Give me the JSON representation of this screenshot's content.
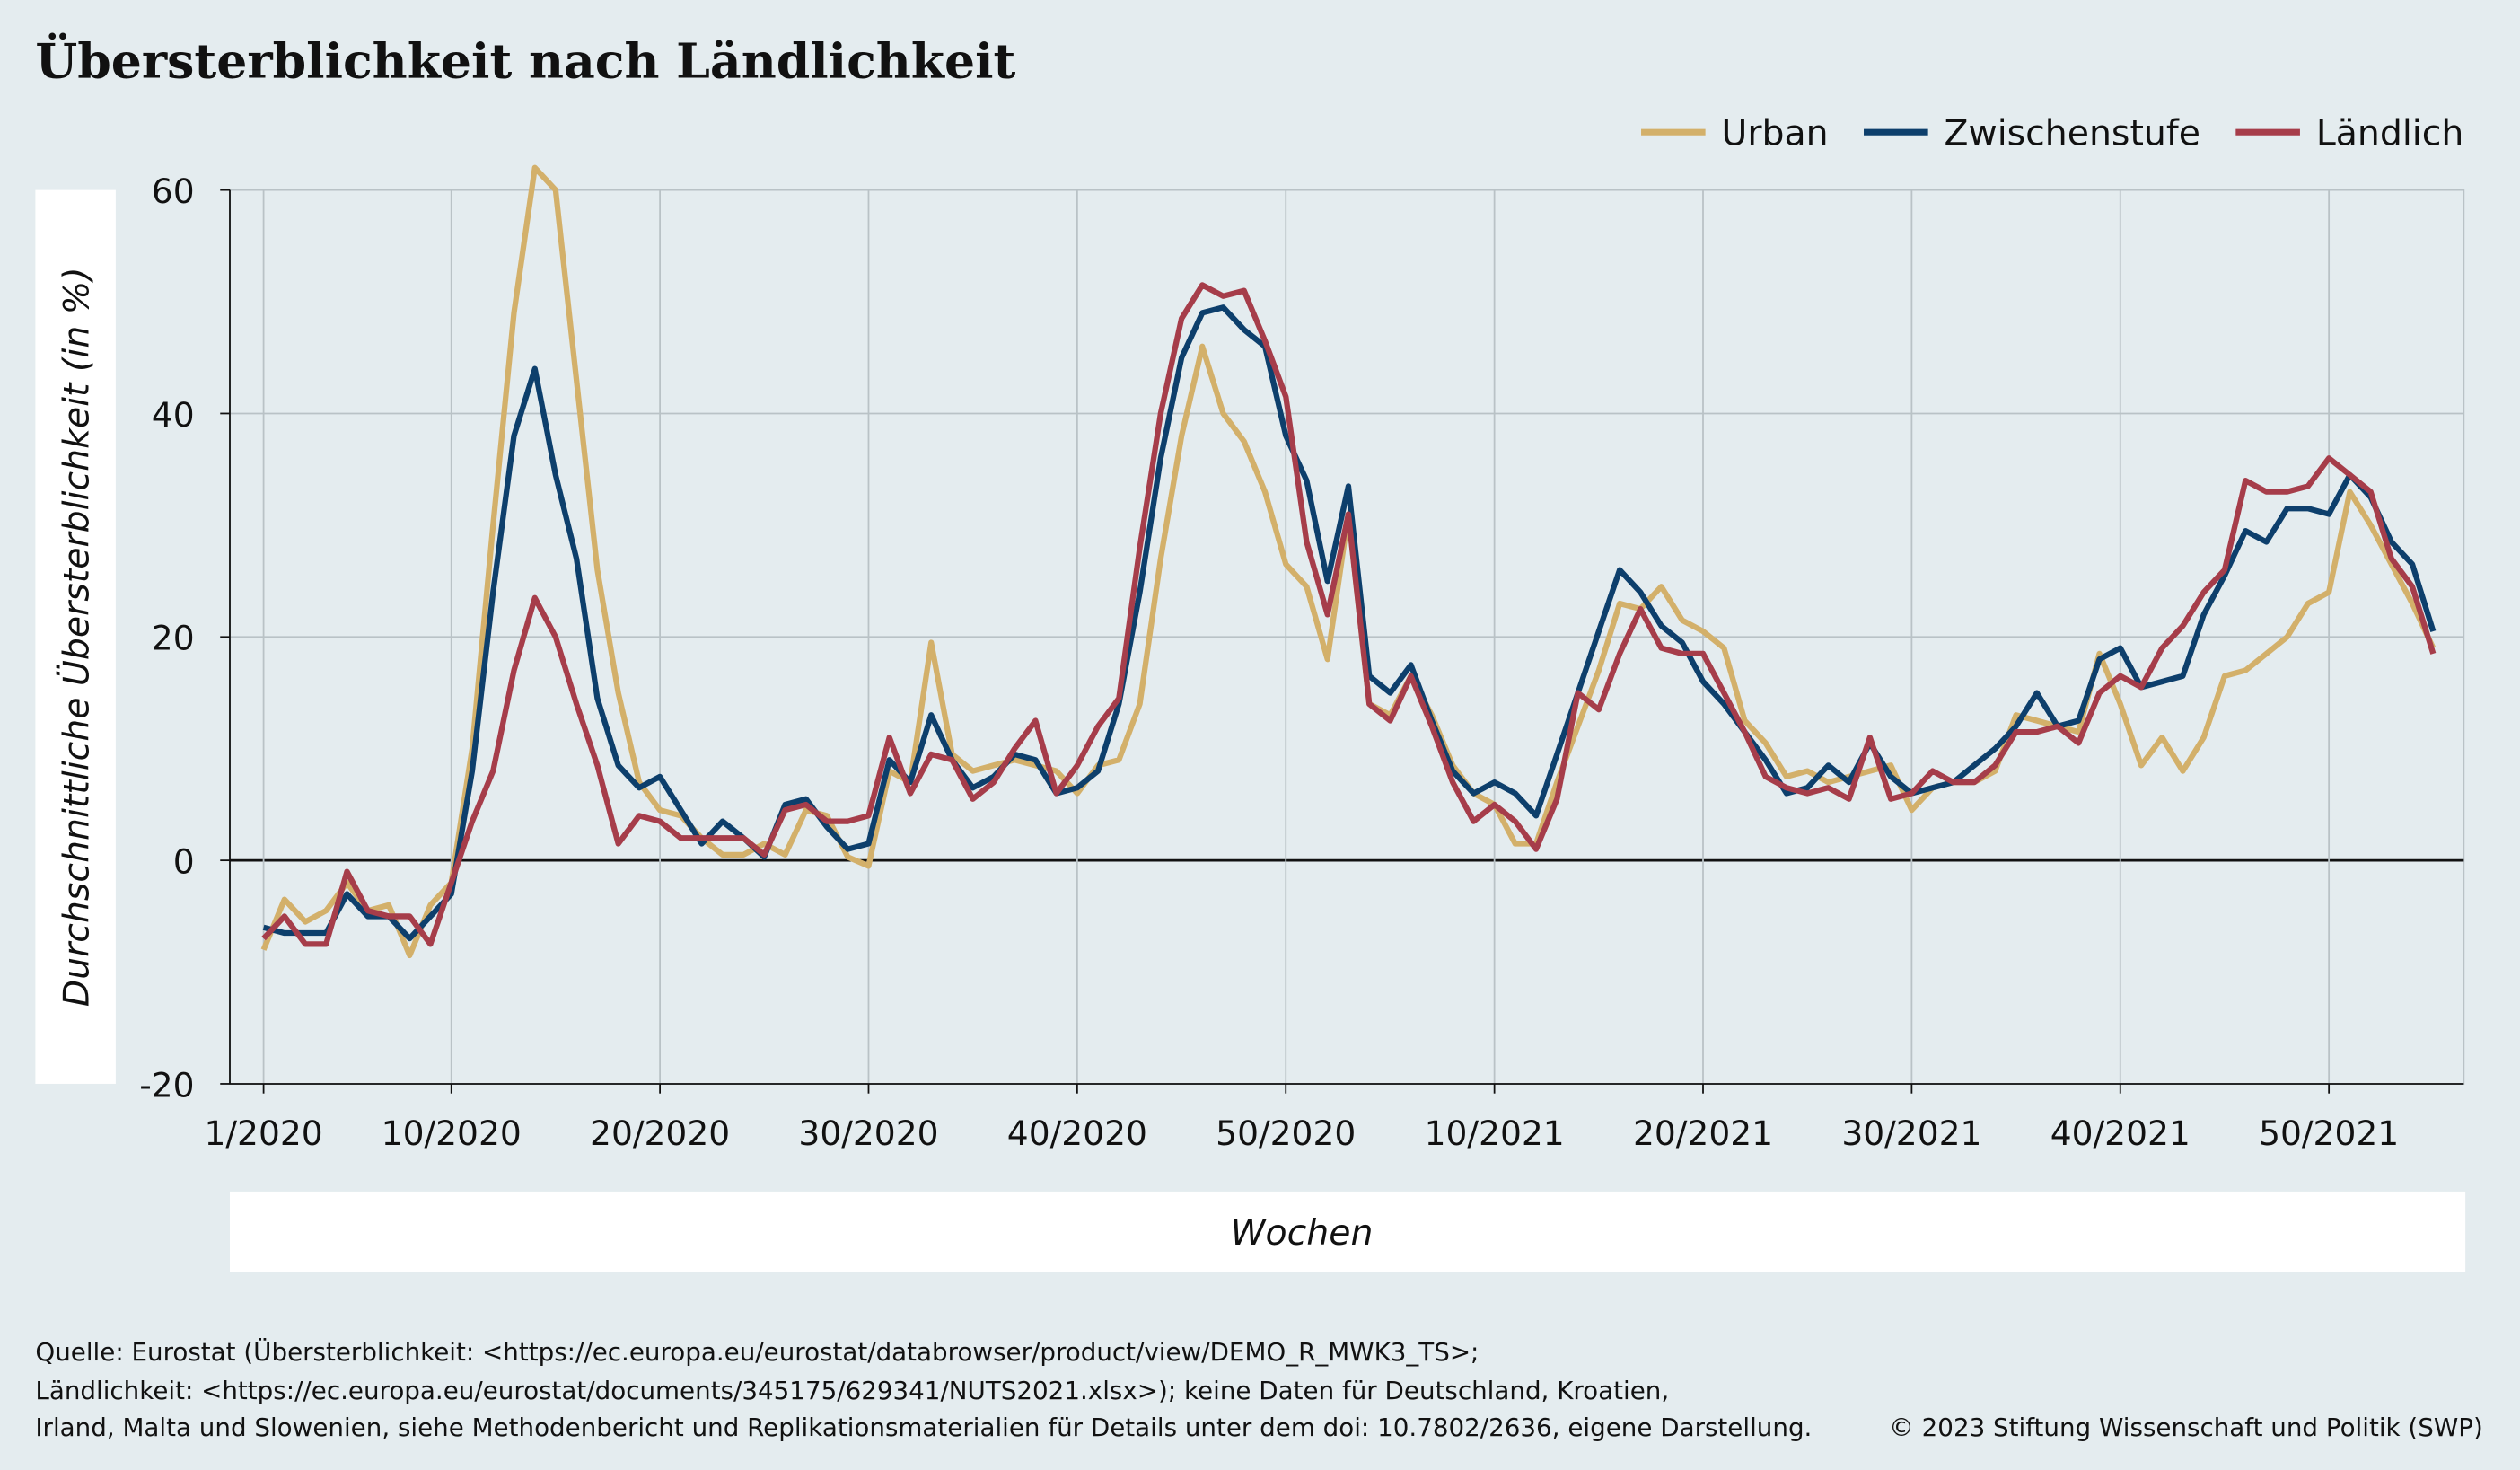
{
  "chart_data": {
    "type": "line",
    "title": "Übersterblichkeit nach Ländlichkeit",
    "y_label": "Durchschnittliche Übersterblichkeit (in %)",
    "x_label": "Wochen",
    "categories": [
      "1/2020",
      null,
      null,
      null,
      null,
      null,
      null,
      null,
      null,
      "10/2020",
      null,
      null,
      null,
      null,
      null,
      null,
      null,
      null,
      null,
      "20/2020",
      null,
      null,
      null,
      null,
      null,
      null,
      null,
      null,
      null,
      "30/2020",
      null,
      null,
      null,
      null,
      null,
      null,
      null,
      null,
      null,
      "40/2020",
      null,
      null,
      null,
      null,
      null,
      null,
      null,
      null,
      null,
      "50/2020",
      null,
      null,
      null,
      null,
      null,
      null,
      null,
      null,
      null,
      "10/2021",
      null,
      null,
      null,
      null,
      null,
      null,
      null,
      null,
      null,
      "20/2021",
      null,
      null,
      null,
      null,
      null,
      null,
      null,
      null,
      null,
      "30/2021",
      null,
      null,
      null,
      null,
      null,
      null,
      null,
      null,
      null,
      "40/2021",
      null,
      null,
      null,
      null,
      null,
      null,
      null,
      null,
      null,
      "50/2021",
      null,
      null,
      null,
      null,
      null
    ],
    "series": [
      {
        "name": "Urban",
        "color": "#d3b06a",
        "values": [
          -8,
          -3.5,
          -5.5,
          -4.5,
          -2,
          -4.5,
          -4,
          -8.5,
          -4,
          -2,
          10,
          30,
          49,
          62,
          60,
          43,
          26,
          15,
          7,
          4.5,
          4,
          2,
          0.5,
          0.5,
          1.5,
          0.5,
          4.5,
          4,
          0.3,
          -0.5,
          8,
          7,
          19.5,
          9.5,
          8,
          8.5,
          9,
          8.5,
          8,
          6,
          8.5,
          9,
          14,
          27,
          38,
          46,
          40,
          37.5,
          33,
          26.5,
          24.5,
          18,
          31,
          14,
          13,
          16.5,
          13,
          8.5,
          6,
          5,
          1.5,
          1.5,
          7,
          12,
          17,
          23,
          22.5,
          24.5,
          21.5,
          20.5,
          19,
          12.5,
          10.5,
          7.5,
          8,
          7,
          7.5,
          8,
          8.5,
          4.5,
          6.5,
          7,
          7,
          8,
          13,
          12.5,
          12,
          11.5,
          18.5,
          14,
          8.5,
          11,
          8,
          11,
          16.5,
          17,
          18.5,
          20,
          23,
          24,
          33,
          30,
          26.5,
          23,
          19
        ]
      },
      {
        "name": "Zwischenstufe",
        "color": "#0d3f6c",
        "values": [
          -6,
          -6.5,
          -6.5,
          -6.5,
          -3,
          -5,
          -5,
          -7,
          -5,
          -3,
          8,
          24,
          38,
          44,
          34.5,
          27,
          14.5,
          8.5,
          6.5,
          7.5,
          4.5,
          1.5,
          3.5,
          2,
          0.3,
          5,
          5.5,
          3,
          1,
          1.5,
          9,
          7,
          13,
          9,
          6.5,
          7.5,
          9.5,
          9,
          6,
          6.5,
          8,
          14,
          24,
          36,
          45,
          49,
          49.5,
          47.5,
          46,
          38,
          34,
          25,
          33.5,
          16.5,
          15,
          17.5,
          12.5,
          8,
          6,
          7,
          6,
          4,
          9.5,
          15,
          20.5,
          26,
          24,
          21,
          19.5,
          16,
          14,
          11.5,
          9,
          6,
          6.5,
          8.5,
          7,
          10.5,
          7.5,
          6,
          6.5,
          7,
          8.5,
          10,
          12,
          15,
          12,
          12.5,
          18,
          19,
          15.5,
          16,
          16.5,
          22,
          25.5,
          29.5,
          28.5,
          31.5,
          31.5,
          31,
          34.5,
          32.5,
          28.5,
          26.5,
          20.5
        ]
      },
      {
        "name": "Ländlich",
        "color": "#a63d4a",
        "values": [
          -7,
          -5,
          -7.5,
          -7.5,
          -1,
          -4.5,
          -5,
          -5,
          -7.5,
          -2,
          3.5,
          8,
          17,
          23.5,
          20,
          14,
          8.5,
          1.5,
          4,
          3.5,
          2,
          2,
          2,
          2,
          0.5,
          4.5,
          5,
          3.5,
          3.5,
          4,
          11,
          6,
          9.5,
          9,
          5.5,
          7,
          10,
          12.5,
          6,
          8.5,
          12,
          14.5,
          28,
          40,
          48.5,
          51.5,
          50.5,
          51,
          46.5,
          41.5,
          28.5,
          22,
          31,
          14,
          12.5,
          16.5,
          12,
          7,
          3.5,
          5,
          3.5,
          1,
          5.5,
          15,
          13.5,
          18.5,
          22.5,
          19,
          18.5,
          18.5,
          15,
          11.5,
          7.5,
          6.5,
          6,
          6.5,
          5.5,
          11,
          5.5,
          6,
          8,
          7,
          7,
          8.5,
          11.5,
          11.5,
          12,
          10.5,
          15,
          16.5,
          15.5,
          19,
          21,
          24,
          26,
          34,
          33,
          33,
          33.5,
          36,
          34.5,
          33,
          27,
          24.5,
          18.5
        ]
      }
    ],
    "ylim": [
      -20,
      60
    ],
    "yticks": [
      -20,
      0,
      20,
      40,
      60
    ],
    "grid": true,
    "legend": "top-right",
    "source": [
      "Quelle: Eurostat (Übersterblichkeit: <https://ec.europa.eu/eurostat/databrowser/product/view/DEMO_R_MWK3_TS>;",
      "Ländlichkeit: <https://ec.europa.eu/eurostat/documents/345175/629341/NUTS2021.xlsx>); keine Daten für Deutschland, Kroatien,",
      "Irland, Malta und Slowenien, siehe Methodenbericht und Replikationsmaterialien für Details unter dem doi: 10.7802/2636, eigene Darstellung."
    ],
    "copyright": "© 2023 Stiftung Wissenschaft und Politik (SWP)"
  }
}
